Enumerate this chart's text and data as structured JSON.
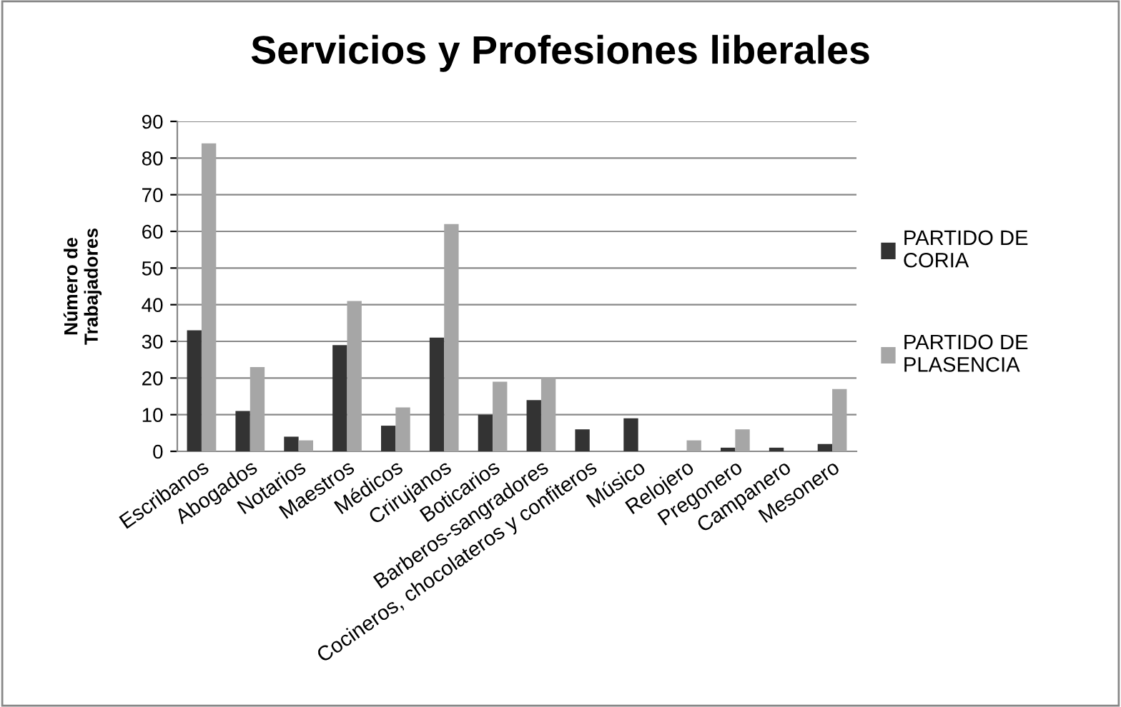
{
  "chart_data": {
    "type": "bar",
    "title": "Servicios y Profesiones liberales",
    "ylabel": "Número de\nTrabajadores",
    "categories": [
      "Escribanos",
      "Abogados",
      "Notarios",
      "Maestros",
      "Médicos",
      "Crirujanos",
      "Boticarios",
      "Barberos-sangradores",
      "Cocineros, chocolateros y confiteros",
      "Músico",
      "Relojero",
      "Pregonero",
      "Campanero",
      "Mesonero"
    ],
    "series": [
      {
        "name": "PARTIDO DE\nCORIA",
        "color": "#333333",
        "values": [
          33,
          11,
          4,
          29,
          7,
          31,
          10,
          14,
          6,
          9,
          0,
          1,
          1,
          2
        ]
      },
      {
        "name": "PARTIDO DE\nPLASENCIA",
        "color": "#a6a6a6",
        "values": [
          84,
          23,
          3,
          41,
          12,
          62,
          19,
          20,
          0,
          0,
          3,
          6,
          0,
          17
        ]
      }
    ],
    "ylim": [
      0,
      90
    ],
    "yticks": [
      0,
      10,
      20,
      30,
      40,
      50,
      60,
      70,
      80,
      90
    ],
    "grid": "y",
    "legend": "right"
  }
}
